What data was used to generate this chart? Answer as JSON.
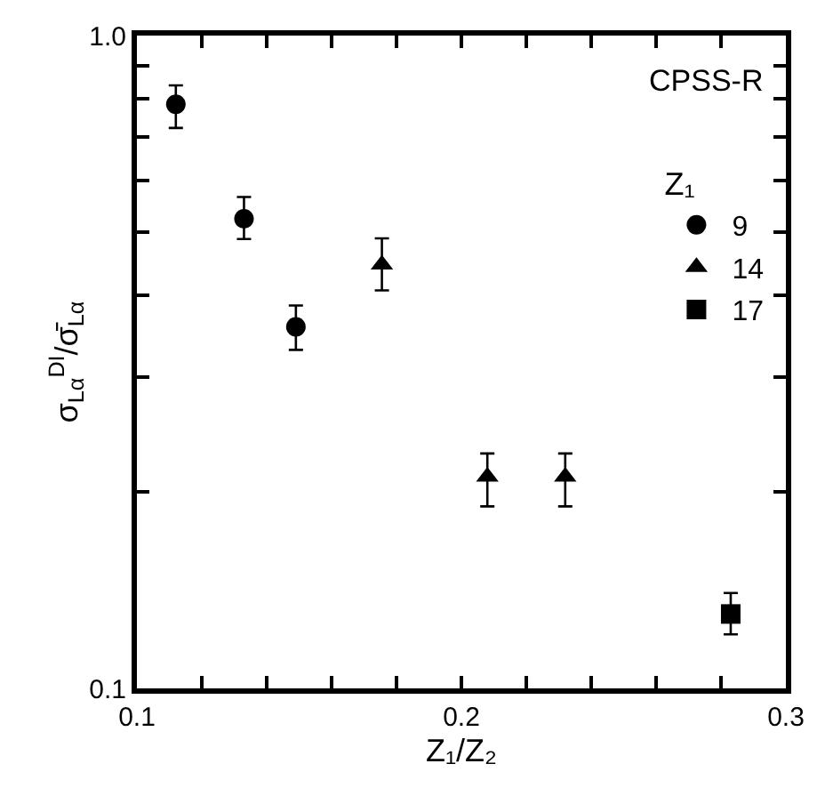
{
  "chart_data": {
    "type": "scatter",
    "xlabel": "Z₁/Z₂",
    "ylabel": "σ$_{Lα}$$^{DI}$/σ̄$_{Lα}$",
    "legend_title": "Z₁",
    "annotations": [
      "CPSS-R"
    ],
    "series": [
      {
        "name": "9",
        "color": "#000000",
        "marker": "circle",
        "x": [
          0.112,
          0.133,
          0.149
        ],
        "values": [
          0.785,
          0.524,
          0.358
        ],
        "errors": [
          [
            0.722,
            0.839
          ],
          [
            0.488,
            0.566
          ],
          [
            0.33,
            0.386
          ]
        ]
      },
      {
        "name": "14",
        "color": "#000000",
        "marker": "triangle",
        "x": [
          0.1755,
          0.208,
          0.232
        ],
        "values": [
          0.446,
          0.211,
          0.211
        ],
        "errors": [
          [
            0.407,
            0.489
          ],
          [
            0.19,
            0.229
          ],
          [
            0.19,
            0.229
          ]
        ]
      },
      {
        "name": "17",
        "color": "#000000",
        "marker": "square",
        "x": [
          0.283
        ],
        "values": [
          0.13
        ],
        "errors": [
          [
            0.121,
            0.14
          ]
        ]
      }
    ],
    "log": "y",
    "xlim": [
      0.1,
      0.3
    ],
    "ylim": [
      0.1,
      1.0
    ],
    "xticks": [
      0.1,
      {
        "value": 0.12,
        "label": null
      },
      {
        "value": 0.14,
        "label": null
      },
      {
        "value": 0.16,
        "label": null
      },
      {
        "value": 0.18,
        "label": null
      },
      0.2,
      {
        "value": 0.22,
        "label": null
      },
      {
        "value": 0.24,
        "label": null
      },
      {
        "value": 0.26,
        "label": null
      },
      {
        "value": 0.28,
        "label": null
      },
      0.3
    ],
    "yticks": [
      0.1,
      {
        "value": 0.2,
        "label": null
      },
      {
        "value": 0.3,
        "label": null
      },
      {
        "value": 0.4,
        "label": null
      },
      {
        "value": 0.5,
        "label": null
      },
      {
        "value": 0.6,
        "label": null
      },
      {
        "value": 0.7,
        "label": null
      },
      {
        "value": 0.8,
        "label": null
      },
      {
        "value": 0.9,
        "label": null
      },
      {
        "value": 1.0,
        "label": "1.0"
      }
    ],
    "legend": "top right"
  }
}
